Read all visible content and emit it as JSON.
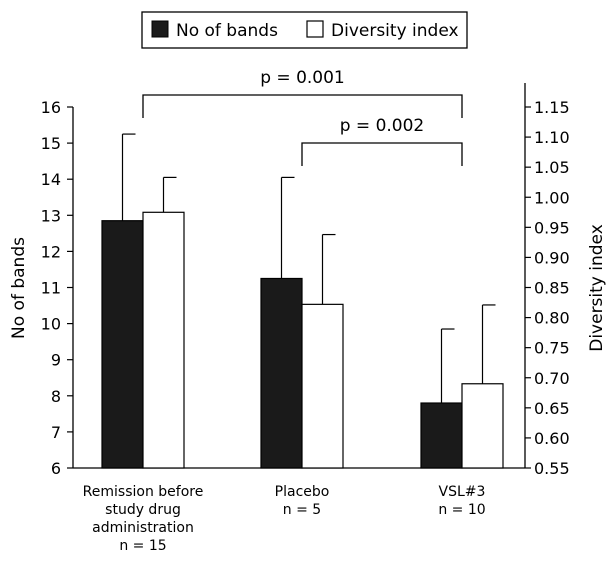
{
  "chart_data": {
    "type": "bar",
    "categories": [
      [
        "Remission before",
        "study drug",
        "administration",
        "n = 15"
      ],
      [
        "Placebo",
        "n = 5"
      ],
      [
        "VSL#3",
        "n = 10"
      ]
    ],
    "series": [
      {
        "name": "No of bands",
        "axis": "left",
        "color": "#1a1a1a",
        "values": [
          12.85,
          11.25,
          7.8
        ],
        "error": [
          2.4,
          2.8,
          2.05
        ]
      },
      {
        "name": "Diversity index",
        "axis": "right",
        "color": "#ffffff",
        "values": [
          0.975,
          0.822,
          0.69
        ],
        "error": [
          0.058,
          0.116,
          0.131
        ]
      }
    ],
    "ylabel": "No of bands",
    "ylabel_right": "Diversity index",
    "ylim": [
      6,
      16
    ],
    "ylim_right": [
      0.55,
      1.15
    ],
    "yticks": [
      "6",
      "7",
      "8",
      "9",
      "10",
      "11",
      "12",
      "13",
      "14",
      "15",
      "16"
    ],
    "yticks_right": [
      "0.55",
      "0.60",
      "0.65",
      "0.70",
      "0.75",
      "0.80",
      "0.85",
      "0.90",
      "0.95",
      "1.00",
      "1.05",
      "1.10",
      "1.15"
    ],
    "annotations": [
      {
        "text": "p = 0.001",
        "from_category": 0,
        "to_category": 2
      },
      {
        "text": "p = 0.002",
        "from_category": 1,
        "to_category": 2
      }
    ],
    "legend": {
      "position": "top",
      "entries": [
        "No of bands",
        "Diversity index"
      ]
    },
    "grid": false
  }
}
